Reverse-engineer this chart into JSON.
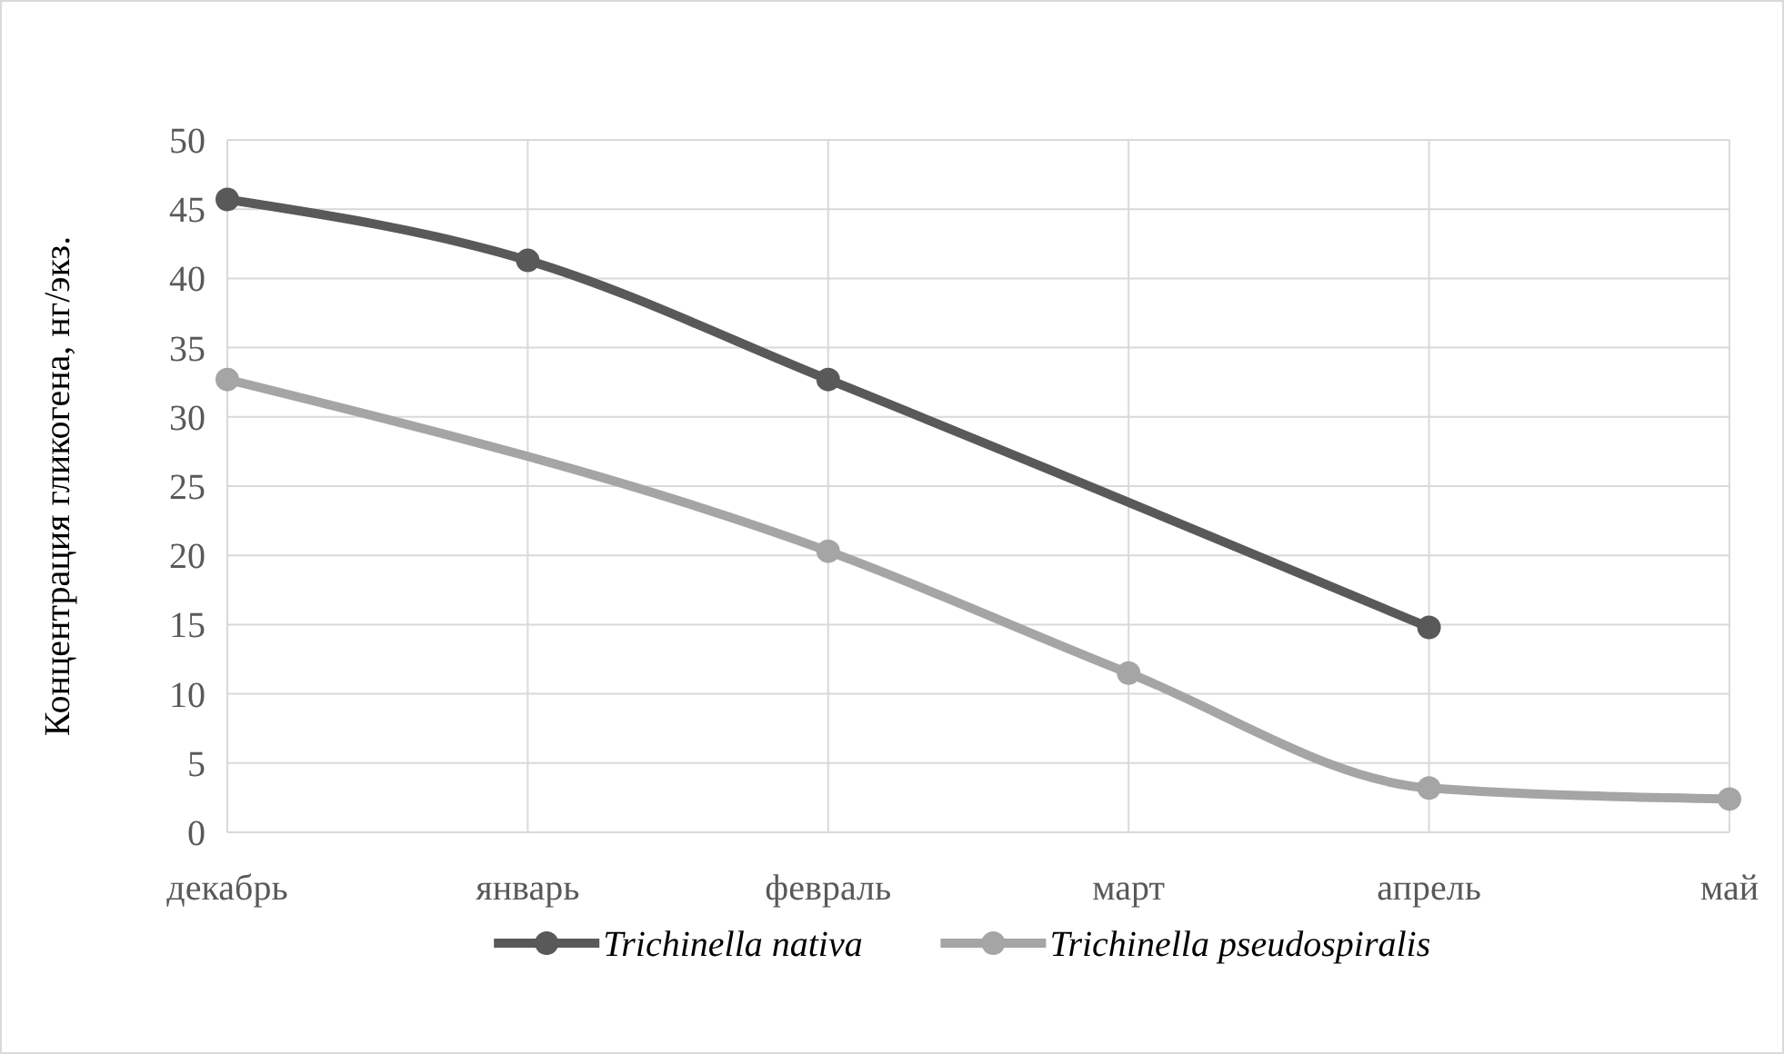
{
  "chart_data": {
    "type": "line",
    "ylabel": "Концентрация гликогена, нг/экз.",
    "categories": [
      "декабрь",
      "январь",
      "февраль",
      "март",
      "апрель",
      "май"
    ],
    "series": [
      {
        "name": "Trichinella nativa",
        "color": "#595959",
        "values": [
          45.7,
          41.3,
          32.7,
          null,
          14.8,
          null
        ]
      },
      {
        "name": "Trichinella pseudospiralis",
        "color": "#a5a5a5",
        "values": [
          32.7,
          null,
          20.3,
          11.5,
          3.2,
          2.4
        ]
      }
    ],
    "ylim": [
      0,
      50
    ],
    "yticks": [
      0,
      5,
      10,
      15,
      20,
      25,
      30,
      35,
      40,
      45,
      50
    ],
    "grid": true,
    "legend": "bottom",
    "marker": "circle",
    "line_style": "solid"
  }
}
